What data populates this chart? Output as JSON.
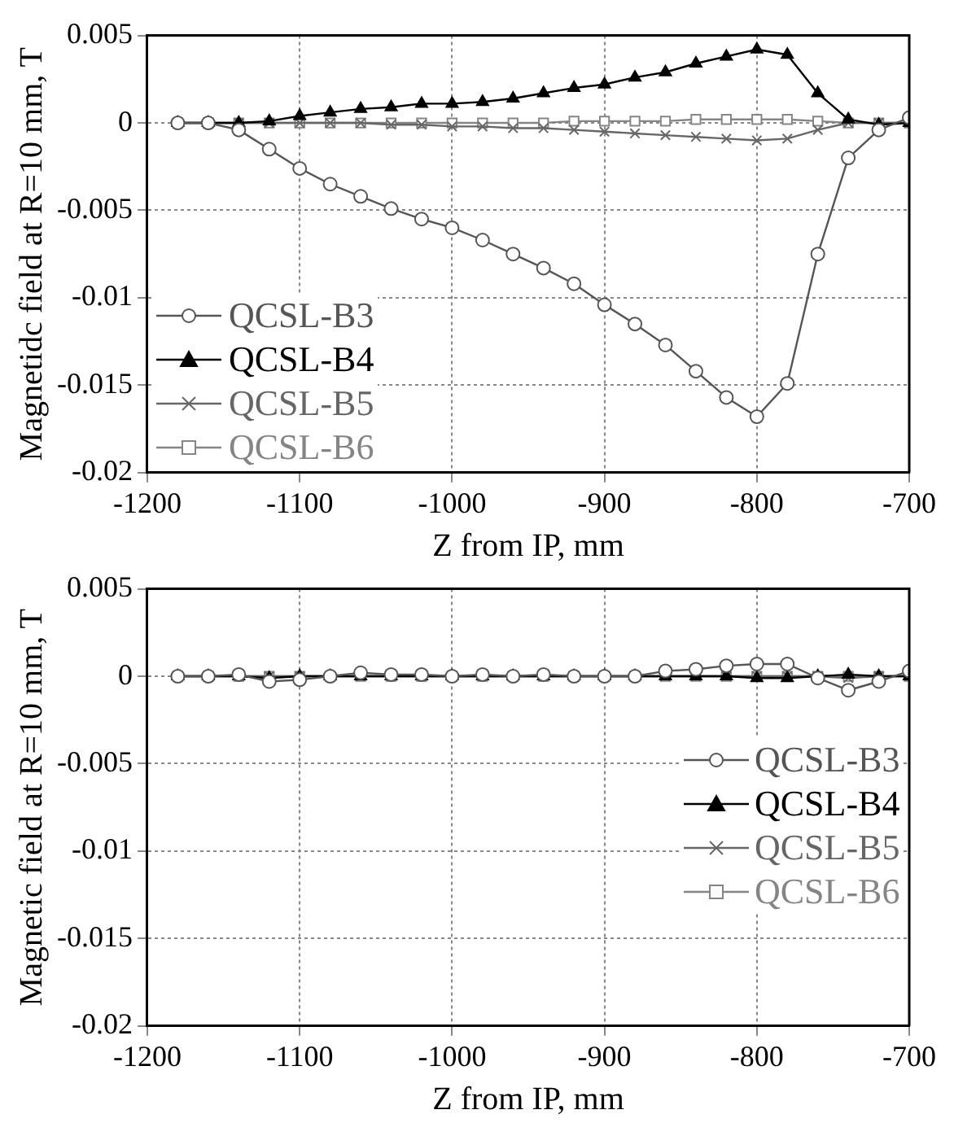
{
  "chart_data": [
    {
      "type": "line",
      "xlabel": "Z from IP, mm",
      "ylabel": "Magnetidc field at R=10 mm, T",
      "x": [
        -1180,
        -1160,
        -1140,
        -1120,
        -1100,
        -1080,
        -1060,
        -1040,
        -1020,
        -1000,
        -980,
        -960,
        -940,
        -920,
        -900,
        -880,
        -860,
        -840,
        -820,
        -800,
        -780,
        -760,
        -740,
        -720,
        -700
      ],
      "xlim": [
        -1200,
        -700
      ],
      "xticks": [
        -1200,
        -1100,
        -1000,
        -900,
        -800,
        -700
      ],
      "ylim": [
        -0.02,
        0.005
      ],
      "yticks": [
        -0.02,
        -0.015,
        -0.01,
        -0.005,
        0,
        0.005
      ],
      "grid": true,
      "legend": "bottom left",
      "line_style": "solid",
      "series": [
        {
          "name": "QCSL-B3",
          "color": "#555555",
          "marker": "circle",
          "values": [
            0,
            0,
            -0.0004,
            -0.0015,
            -0.0026,
            -0.0035,
            -0.0042,
            -0.0049,
            -0.0055,
            -0.006,
            -0.0067,
            -0.0075,
            -0.0083,
            -0.0092,
            -0.0104,
            -0.0115,
            -0.0127,
            -0.0142,
            -0.0157,
            -0.0168,
            -0.0149,
            -0.0075,
            -0.002,
            -0.0004,
            0.0003
          ]
        },
        {
          "name": "QCSL-B4",
          "color": "#000000",
          "marker": "triangle",
          "values": [
            0,
            0,
            0,
            0.0001,
            0.0004,
            0.0006,
            0.0008,
            0.0009,
            0.0011,
            0.0011,
            0.0012,
            0.0014,
            0.0017,
            0.002,
            0.0022,
            0.0026,
            0.0029,
            0.0034,
            0.0038,
            0.0042,
            0.0039,
            0.0017,
            0.0002,
            -0.0001,
            0
          ]
        },
        {
          "name": "QCSL-B5",
          "color": "#666666",
          "marker": "cross",
          "values": [
            0,
            0,
            0,
            0,
            0,
            0,
            0,
            -0.0001,
            -0.0001,
            -0.0002,
            -0.0002,
            -0.0003,
            -0.0003,
            -0.0004,
            -0.0005,
            -0.0006,
            -0.0007,
            -0.0008,
            -0.0009,
            -0.001,
            -0.0009,
            -0.0004,
            0,
            0,
            0
          ]
        },
        {
          "name": "QCSL-B6",
          "color": "#858585",
          "marker": "square",
          "values": [
            0,
            0,
            0,
            0,
            0,
            0,
            0,
            0,
            0,
            0,
            0,
            0,
            0,
            0.0001,
            0.0001,
            0.0001,
            0.0001,
            0.0002,
            0.0002,
            0.0002,
            0.0002,
            0.0001,
            0,
            0,
            0
          ]
        }
      ]
    },
    {
      "type": "line",
      "xlabel": "Z from IP, mm",
      "ylabel": "Magnetic field at R=10 mm, T",
      "x": [
        -1180,
        -1160,
        -1140,
        -1120,
        -1100,
        -1080,
        -1060,
        -1040,
        -1020,
        -1000,
        -980,
        -960,
        -940,
        -920,
        -900,
        -880,
        -860,
        -840,
        -820,
        -800,
        -780,
        -760,
        -740,
        -720,
        -700
      ],
      "xlim": [
        -1200,
        -700
      ],
      "xticks": [
        -1200,
        -1100,
        -1000,
        -900,
        -800,
        -700
      ],
      "ylim": [
        -0.02,
        0.005
      ],
      "yticks": [
        -0.02,
        -0.015,
        -0.01,
        -0.005,
        0,
        0.005
      ],
      "grid": true,
      "legend": "right",
      "line_style": "solid",
      "series": [
        {
          "name": "QCSL-B3",
          "color": "#555555",
          "marker": "circle",
          "values": [
            0,
            0,
            0.0001,
            -0.0003,
            -0.0002,
            0,
            0.0002,
            0.0001,
            0.0001,
            0,
            0.0001,
            0,
            0.0001,
            0,
            0,
            0,
            0.0003,
            0.0004,
            0.0006,
            0.0007,
            0.0007,
            -0.0001,
            -0.0008,
            -0.0003,
            0.0003
          ]
        },
        {
          "name": "QCSL-B4",
          "color": "#000000",
          "marker": "triangle",
          "values": [
            0,
            0,
            0,
            -0.0001,
            0,
            0,
            0,
            0,
            0,
            0,
            0,
            0,
            0,
            0,
            0,
            0,
            0,
            0,
            0,
            -0.0001,
            -0.0001,
            0,
            0.0001,
            0,
            0
          ]
        },
        {
          "name": "QCSL-B5",
          "color": "#666666",
          "marker": "cross",
          "values": [
            0,
            0,
            0,
            0,
            0,
            0,
            0,
            0,
            0,
            0,
            0,
            0,
            0,
            0,
            0,
            0,
            0,
            0,
            0,
            0,
            0,
            0,
            -0.0001,
            0,
            0
          ]
        },
        {
          "name": "QCSL-B6",
          "color": "#858585",
          "marker": "square",
          "values": [
            0,
            0,
            0,
            0,
            0,
            0,
            0,
            0,
            0,
            0,
            0,
            0,
            0,
            0,
            0,
            0,
            0,
            0,
            0,
            0,
            0,
            0,
            0,
            0,
            0
          ]
        }
      ]
    }
  ]
}
